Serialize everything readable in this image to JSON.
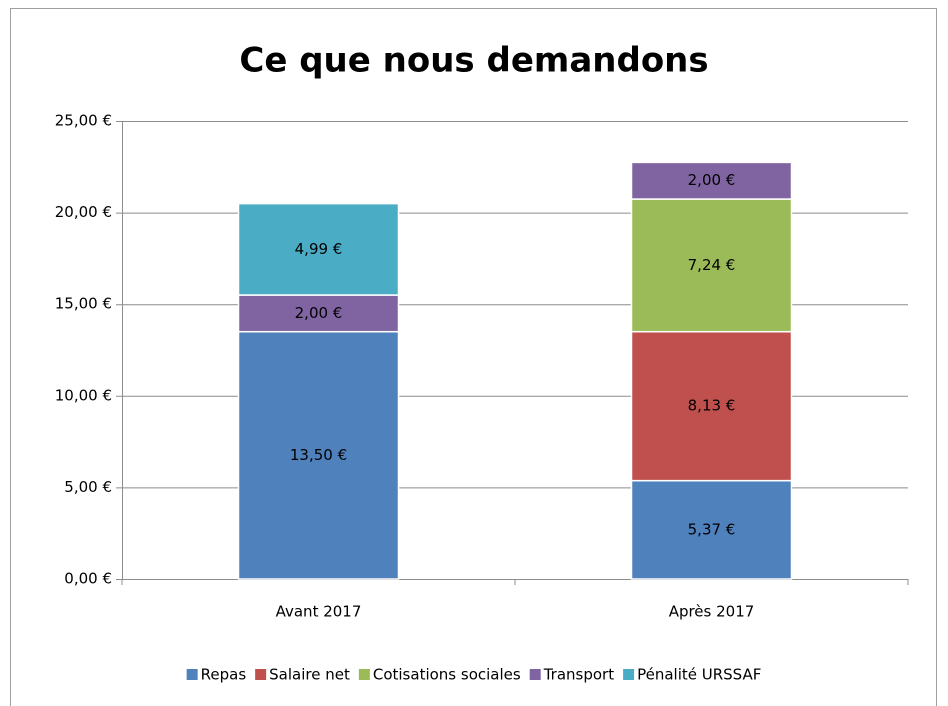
{
  "chart_data": {
    "type": "stacked_bar",
    "title": "Ce que nous demandons",
    "categories": [
      "Avant 2017",
      "Après 2017"
    ],
    "series": [
      {
        "name": "Repas",
        "color": "#4f81bd",
        "values": [
          13.5,
          5.37
        ],
        "value_labels": [
          "13,50 €",
          "5,37 €"
        ]
      },
      {
        "name": "Salaire net",
        "color": "#c0504d",
        "values": [
          null,
          8.13
        ],
        "value_labels": [
          null,
          "8,13 €"
        ]
      },
      {
        "name": "Cotisations sociales",
        "color": "#9bbb59",
        "values": [
          null,
          7.24
        ],
        "value_labels": [
          null,
          "7,24 €"
        ]
      },
      {
        "name": "Transport",
        "color": "#8064a2",
        "values": [
          2,
          2
        ],
        "value_labels": [
          "2,00 €",
          "2,00 €"
        ]
      },
      {
        "name": "Pénalité URSSAF",
        "color": "#4bacc6",
        "values": [
          4.99,
          null
        ],
        "value_labels": [
          "4,99 €",
          null
        ]
      }
    ],
    "ylim": [
      0,
      25
    ],
    "yticks": [
      {
        "value": 0,
        "label": "0,00 €"
      },
      {
        "value": 5,
        "label": "5,00 €"
      },
      {
        "value": 10,
        "label": "10,00 €"
      },
      {
        "value": 15,
        "label": "15,00 €"
      },
      {
        "value": 20,
        "label": "20,00 €"
      },
      {
        "value": 25,
        "label": "25,00 €"
      }
    ],
    "grid": true,
    "legend": "bottom"
  }
}
